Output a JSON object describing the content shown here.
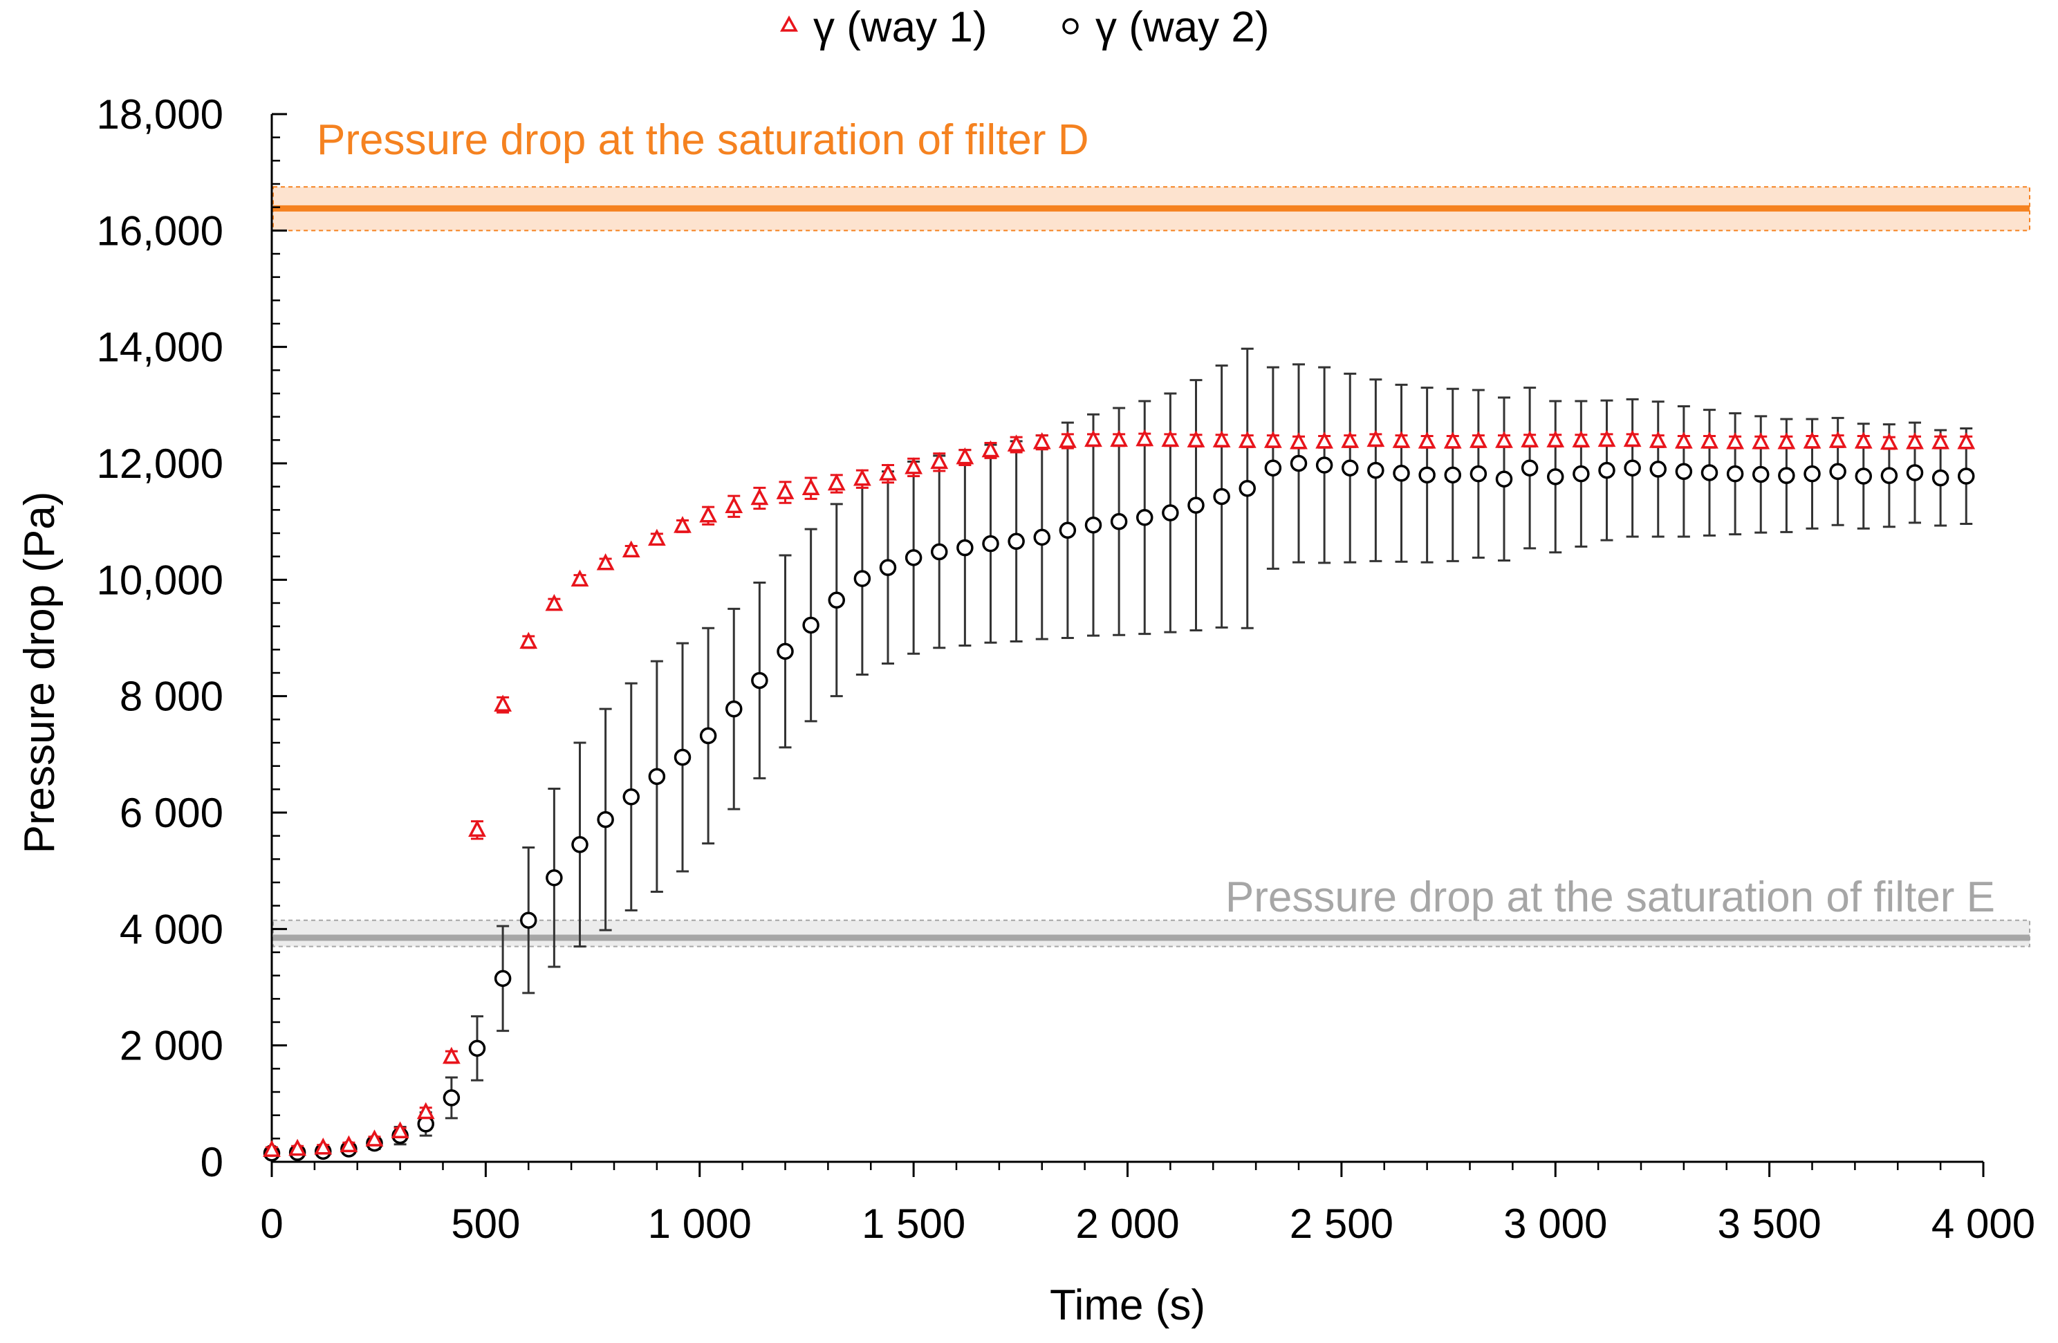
{
  "chart_data": {
    "type": "scatter",
    "title": "",
    "xlabel": "Time (s)",
    "ylabel": "Pressure drop (Pa)",
    "xlim": [
      0,
      4000
    ],
    "ylim": [
      0,
      18000
    ],
    "x_ticks": [
      0,
      500,
      1000,
      1500,
      2000,
      2500,
      3000,
      3500,
      4000
    ],
    "x_tick_labels": [
      "0",
      "500",
      "1 000",
      "1 500",
      "2 000",
      "2 500",
      "3 000",
      "3 500",
      "4 000"
    ],
    "y_ticks": [
      0,
      2000,
      4000,
      6000,
      8000,
      10000,
      12000,
      14000,
      16000,
      18000
    ],
    "y_tick_labels": [
      "0",
      "2 000",
      "4 000",
      "6 000",
      "8 000",
      "10,000",
      "12,000",
      "14,000",
      "16,000",
      "18,000"
    ],
    "grid": false,
    "legend_position": "top-center",
    "series": [
      {
        "name": "γ (way 1)",
        "marker": "triangle-open",
        "color": "#e8141b",
        "x": [
          0,
          60,
          120,
          180,
          240,
          300,
          360,
          420,
          480,
          540,
          600,
          660,
          720,
          780,
          840,
          900,
          960,
          1020,
          1080,
          1140,
          1200,
          1260,
          1320,
          1380,
          1440,
          1500,
          1560,
          1620,
          1680,
          1740,
          1800,
          1860,
          1920,
          1980,
          2040,
          2100,
          2160,
          2220,
          2280,
          2340,
          2400,
          2460,
          2520,
          2580,
          2640,
          2700,
          2760,
          2820,
          2880,
          2940,
          3000,
          3060,
          3120,
          3180,
          3240,
          3300,
          3360,
          3420,
          3480,
          3540,
          3600,
          3660,
          3720,
          3780,
          3840,
          3900,
          3960
        ],
        "y": [
          200,
          220,
          240,
          280,
          380,
          520,
          850,
          1800,
          5700,
          7850,
          8930,
          9580,
          10000,
          10280,
          10500,
          10700,
          10920,
          11100,
          11260,
          11400,
          11500,
          11570,
          11650,
          11730,
          11820,
          11930,
          12020,
          12100,
          12220,
          12320,
          12360,
          12380,
          12400,
          12400,
          12410,
          12400,
          12390,
          12390,
          12380,
          12380,
          12360,
          12370,
          12380,
          12400,
          12380,
          12370,
          12370,
          12380,
          12380,
          12390,
          12390,
          12390,
          12400,
          12400,
          12380,
          12370,
          12370,
          12360,
          12360,
          12360,
          12370,
          12380,
          12370,
          12350,
          12360,
          12360,
          12360
        ],
        "error": [
          50,
          50,
          50,
          50,
          50,
          60,
          80,
          100,
          150,
          130,
          100,
          90,
          80,
          80,
          80,
          90,
          100,
          150,
          180,
          180,
          180,
          180,
          150,
          150,
          150,
          150,
          150,
          130,
          130,
          130,
          120,
          120,
          100,
          100,
          100,
          100,
          100,
          100,
          100,
          100,
          100,
          100,
          100,
          100,
          100,
          100,
          100,
          100,
          100,
          100,
          100,
          100,
          100,
          100,
          100,
          100,
          100,
          100,
          100,
          100,
          100,
          100,
          100,
          100,
          100,
          100,
          100
        ]
      },
      {
        "name": "γ (way 2)",
        "marker": "circle-open",
        "color": "#000000",
        "x": [
          0,
          60,
          120,
          180,
          240,
          300,
          360,
          420,
          480,
          540,
          600,
          660,
          720,
          780,
          840,
          900,
          960,
          1020,
          1080,
          1140,
          1200,
          1260,
          1320,
          1380,
          1440,
          1500,
          1560,
          1620,
          1680,
          1740,
          1800,
          1860,
          1920,
          1980,
          2040,
          2100,
          2160,
          2220,
          2280,
          2340,
          2400,
          2460,
          2520,
          2580,
          2640,
          2700,
          2760,
          2820,
          2880,
          2940,
          3000,
          3060,
          3120,
          3180,
          3240,
          3300,
          3360,
          3420,
          3480,
          3540,
          3600,
          3660,
          3720,
          3780,
          3840,
          3900,
          3960
        ],
        "y": [
          150,
          160,
          180,
          220,
          320,
          450,
          650,
          1100,
          1950,
          3150,
          4150,
          4880,
          5450,
          5880,
          6270,
          6620,
          6950,
          7320,
          7780,
          8270,
          8770,
          9220,
          9650,
          10020,
          10210,
          10380,
          10480,
          10550,
          10620,
          10660,
          10730,
          10850,
          10940,
          11000,
          11070,
          11150,
          11280,
          11430,
          11570,
          11920,
          12000,
          11970,
          11920,
          11880,
          11830,
          11800,
          11800,
          11820,
          11730,
          11920,
          11770,
          11820,
          11880,
          11920,
          11900,
          11860,
          11840,
          11820,
          11810,
          11790,
          11820,
          11860,
          11780,
          11790,
          11840,
          11750,
          11780
        ],
        "error": [
          50,
          60,
          70,
          80,
          100,
          150,
          200,
          350,
          550,
          900,
          1250,
          1530,
          1750,
          1900,
          1950,
          1980,
          1960,
          1850,
          1720,
          1680,
          1650,
          1650,
          1650,
          1650,
          1650,
          1650,
          1650,
          1680,
          1700,
          1720,
          1750,
          1850,
          1900,
          1950,
          2000,
          2050,
          2150,
          2250,
          2400,
          1730,
          1700,
          1680,
          1620,
          1560,
          1520,
          1500,
          1480,
          1440,
          1400,
          1380,
          1300,
          1250,
          1200,
          1180,
          1160,
          1120,
          1080,
          1040,
          1000,
          970,
          940,
          920,
          900,
          880,
          860,
          820,
          820
        ],
        "error_caps": false
      }
    ],
    "reference_lines": [
      {
        "label": "Pressure drop at the saturation of filter D",
        "value": 16380,
        "band": [
          16000,
          16750
        ],
        "color": "#f58220",
        "band_color": "#fde3cf"
      },
      {
        "label": "Pressure drop at the saturation of filter E",
        "value": 3850,
        "band": [
          3700,
          4150
        ],
        "color": "#a6a6a6",
        "band_color": "#ececec"
      }
    ]
  }
}
